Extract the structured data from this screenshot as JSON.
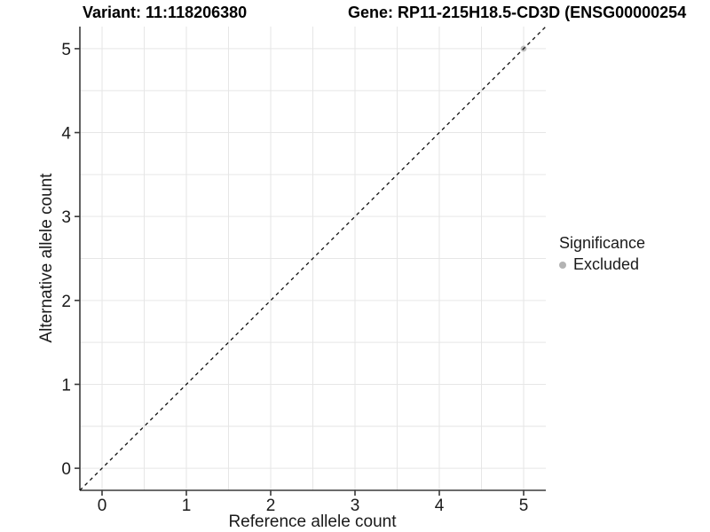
{
  "titles": {
    "variant": "Variant: 11:118206380",
    "gene": "Gene: RP11-215H18.5-CD3D (ENSG00000254"
  },
  "legend": {
    "title": "Significance",
    "items": [
      {
        "label": "Excluded",
        "color": "#bdbdbd"
      }
    ]
  },
  "chart_data": {
    "type": "scatter",
    "title": "Variant: 11:118206380",
    "subtitle_right": "Gene: RP11-215H18.5-CD3D (ENSG00000254",
    "xlabel": "Reference allele count",
    "ylabel": "Alternative allele count",
    "xlim": [
      -0.263,
      5.263
    ],
    "ylim": [
      -0.263,
      5.263
    ],
    "x_ticks": [
      0,
      1,
      2,
      3,
      4,
      5
    ],
    "y_ticks": [
      0,
      1,
      2,
      3,
      4,
      5
    ],
    "grid": {
      "on": true,
      "interval": 0.5,
      "color": "#e6e6e6"
    },
    "legend_position": "right",
    "series": [
      {
        "name": "Excluded",
        "color": "#bdbdbd",
        "points": [
          {
            "x": 5,
            "y": 5
          }
        ]
      }
    ],
    "reference_line": {
      "type": "identity y=x",
      "style": "dashed",
      "color": "#111111"
    }
  },
  "colors": {
    "background": "#ffffff",
    "grid": "#e6e6e6",
    "axis": "#3a3a3a",
    "text": "#1a1a1a",
    "point": "#c2c2c2",
    "legend_dot": "#b3b3b3"
  }
}
